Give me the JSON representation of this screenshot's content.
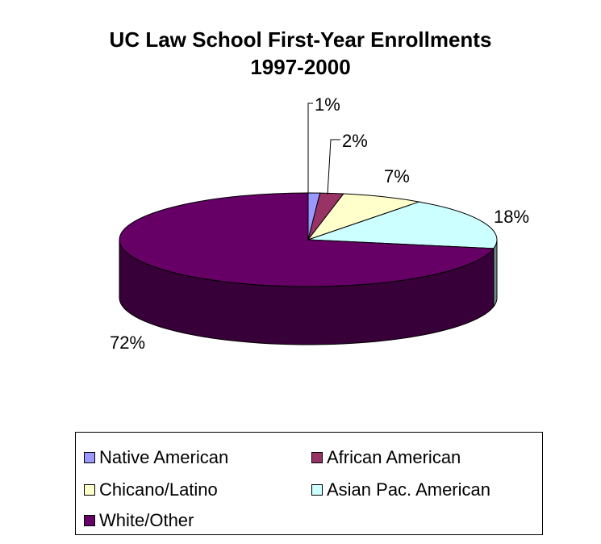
{
  "chart_data": {
    "type": "pie",
    "title": "UC Law School First-Year Enrollments",
    "subtitle": "1997-2000",
    "categories": [
      "Native American",
      "African American",
      "Chicano/Latino",
      "Asian Pac. American",
      "White/Other"
    ],
    "values": [
      1,
      2,
      7,
      18,
      72
    ],
    "value_labels": [
      "1%",
      "2%",
      "7%",
      "18%",
      "72%"
    ],
    "colors": [
      "#9999ff",
      "#993366",
      "#ffffcc",
      "#ccffff",
      "#660066"
    ],
    "legend_position": "bottom",
    "style": "3d"
  }
}
